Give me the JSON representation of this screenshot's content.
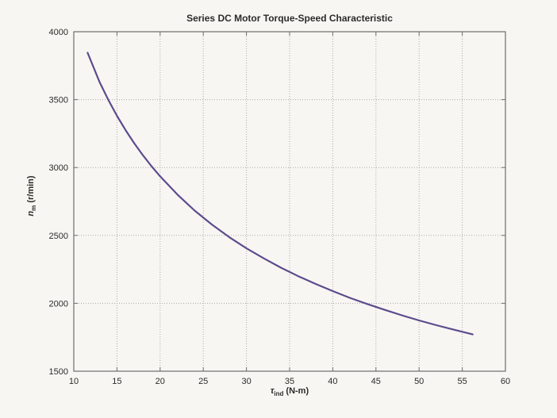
{
  "figure": {
    "background_color": "#f8f6f2",
    "axis_color": "#6e6e6e",
    "grid_color": "#ababab",
    "text_color": "#2b2b2b"
  },
  "chart_data": {
    "type": "line",
    "title": "Series DC Motor Torque-Speed Characteristic",
    "xlabel": "τ_ind (N-m)",
    "ylabel": "n_m (r/min)",
    "xlabel_parts": {
      "symbol": "τ",
      "sub": "ind",
      "rest": " (N-m)"
    },
    "ylabel_parts": {
      "symbol": "n",
      "sub": "m",
      "rest": " (r/min)"
    },
    "xlim": [
      10,
      60
    ],
    "ylim": [
      1500,
      4000
    ],
    "xticks": [
      10,
      15,
      20,
      25,
      30,
      35,
      40,
      45,
      50,
      55,
      60
    ],
    "yticks": [
      1500,
      2000,
      2500,
      3000,
      3500,
      4000
    ],
    "grid": true,
    "grid_style": "dotted",
    "legend": null,
    "line_color": "#5b4c8e",
    "series": [
      {
        "name": "series-motor-torque-speed-curve",
        "x": [
          11.6,
          13,
          14,
          15,
          16,
          17,
          18,
          19,
          20,
          22,
          24,
          26,
          28,
          30,
          32,
          34,
          36,
          38,
          40,
          42,
          44,
          46,
          48,
          50,
          52,
          54,
          56.2
        ],
        "y": [
          3845,
          3628,
          3498,
          3381,
          3275,
          3179,
          3091,
          3010,
          2935,
          2801,
          2683,
          2580,
          2488,
          2405,
          2331,
          2262,
          2200,
          2143,
          2090,
          2040,
          1995,
          1952,
          1912,
          1874,
          1839,
          1806,
          1771
        ]
      }
    ]
  }
}
